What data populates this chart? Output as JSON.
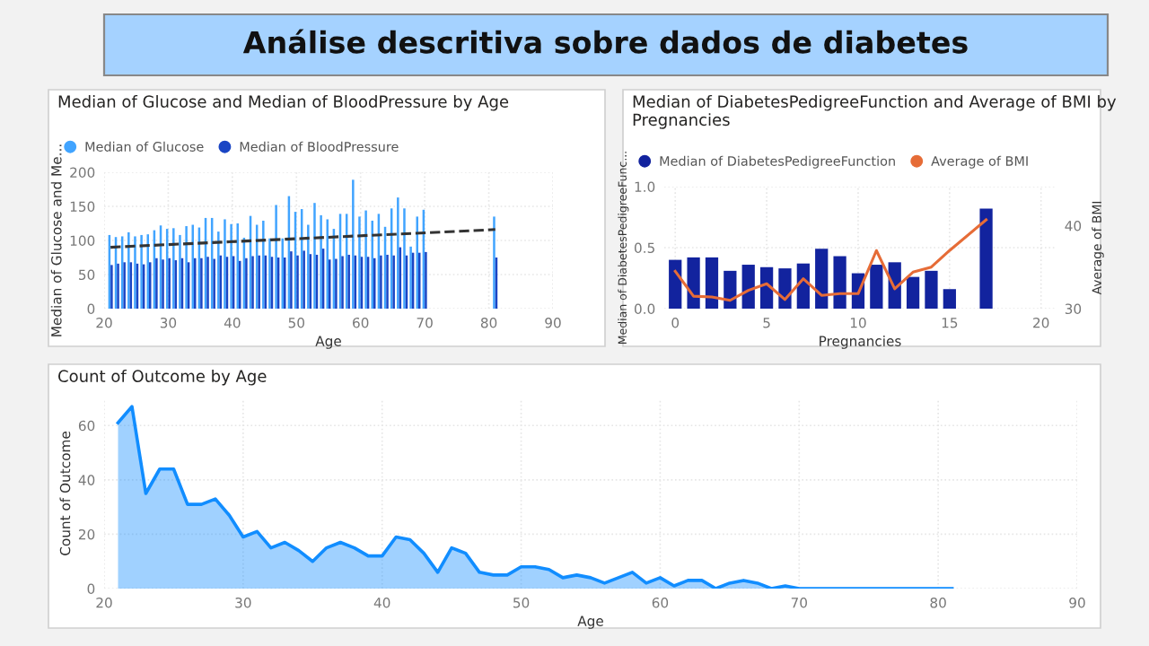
{
  "chart_data": [
    {
      "type": "other",
      "title": "Análise descritiva sobre dados de diabetes",
      "color": "#a5d2ff"
    },
    {
      "type": "bar",
      "title": "Median of Glucose and Median of BloodPressure by Age",
      "xlabel": "Age",
      "ylabel": "Median of Glucose and Me...",
      "x": [
        21,
        22,
        23,
        24,
        25,
        26,
        27,
        28,
        29,
        30,
        31,
        32,
        33,
        34,
        35,
        36,
        37,
        38,
        39,
        40,
        41,
        42,
        43,
        44,
        45,
        46,
        47,
        48,
        49,
        50,
        51,
        52,
        53,
        54,
        55,
        56,
        57,
        58,
        59,
        60,
        61,
        62,
        63,
        64,
        65,
        66,
        67,
        68,
        69,
        70,
        81
      ],
      "series": [
        {
          "name": "Median of Glucose",
          "color": "#41a4ff",
          "values": [
            108,
            105,
            106,
            112,
            106,
            108,
            109,
            115,
            122,
            117,
            118,
            108,
            121,
            123,
            119,
            133,
            133,
            113,
            131,
            124,
            125,
            104,
            136,
            123,
            129,
            103,
            152,
            103,
            165,
            142,
            146,
            123,
            155,
            137,
            131,
            117,
            139,
            139,
            189,
            135,
            144,
            129,
            139,
            120,
            147,
            163,
            147,
            91,
            135,
            145,
            135
          ]
        },
        {
          "name": "Median of BloodPressure",
          "color": "#1a45c4",
          "values": [
            64,
            66,
            68,
            68,
            66,
            65,
            68,
            74,
            72,
            74,
            71,
            74,
            68,
            74,
            74,
            76,
            73,
            78,
            76,
            77,
            70,
            74,
            77,
            78,
            78,
            76,
            75,
            75,
            84,
            78,
            85,
            80,
            79,
            88,
            72,
            73,
            77,
            79,
            78,
            76,
            76,
            74,
            78,
            79,
            78,
            90,
            78,
            82,
            82,
            83,
            75
          ]
        },
        {
          "type": "line",
          "color": "#333333",
          "line_style": "dashed",
          "x": [
            21,
            81
          ],
          "values": [
            90,
            116
          ]
        }
      ],
      "xlim": [
        20,
        90
      ],
      "xticks": [
        20,
        30,
        40,
        50,
        60,
        70,
        80,
        90
      ],
      "ylim": [
        0,
        200
      ],
      "yticks": [
        0,
        50,
        100,
        150,
        200
      ],
      "grid": true,
      "legend": "top left"
    },
    {
      "type": "bar",
      "title": "Median of DiabetesPedigreeFunction and Average of BMI by Pregnancies",
      "xlabel": "Pregnancies",
      "ylabel": "Median of DiabetesPedigreeFunc...",
      "y2label": "Average of BMI",
      "x": [
        0,
        1,
        2,
        3,
        4,
        5,
        6,
        7,
        8,
        9,
        10,
        11,
        12,
        13,
        14,
        15,
        17
      ],
      "series": [
        {
          "name": "Median of DiabetesPedigreeFunction",
          "color": "#12239e",
          "values": [
            0.4,
            0.42,
            0.42,
            0.31,
            0.36,
            0.34,
            0.33,
            0.37,
            0.49,
            0.43,
            0.29,
            0.36,
            0.38,
            0.26,
            0.31,
            0.16,
            0.82
          ]
        },
        {
          "name": "Average of BMI",
          "type": "line",
          "axis": "y2",
          "color": "#e66c37",
          "values": [
            34.5,
            31.5,
            31.4,
            31.0,
            32.2,
            33.0,
            31.1,
            33.6,
            31.6,
            31.8,
            31.8,
            37.0,
            32.4,
            34.4,
            35.0,
            37.0,
            40.7
          ]
        }
      ],
      "xlim": [
        -0.6,
        20.8
      ],
      "xticks": [
        0,
        5,
        10,
        15,
        20
      ],
      "ylim": [
        0,
        1
      ],
      "yticks": [
        {
          "value": 0,
          "label": "0.0"
        },
        {
          "value": 0.5,
          "label": "0.5"
        },
        {
          "value": 1,
          "label": "1.0"
        }
      ],
      "y2lim": [
        30,
        44.7
      ],
      "y2ticks": [
        30,
        40
      ],
      "grid": true,
      "legend": "top left"
    },
    {
      "type": "area",
      "title": "Count of Outcome by Age",
      "xlabel": "Age",
      "ylabel": "Count of Outcome",
      "x": [
        21,
        22,
        23,
        24,
        25,
        26,
        27,
        28,
        29,
        30,
        31,
        32,
        33,
        34,
        35,
        36,
        37,
        38,
        39,
        40,
        41,
        42,
        43,
        44,
        45,
        46,
        47,
        48,
        49,
        50,
        51,
        52,
        53,
        54,
        55,
        56,
        57,
        58,
        59,
        60,
        61,
        62,
        63,
        64,
        65,
        66,
        67,
        68,
        69,
        70,
        81
      ],
      "series": [
        {
          "color": "#118dff",
          "values": [
            61,
            67,
            35,
            44,
            44,
            31,
            31,
            33,
            27,
            19,
            21,
            15,
            17,
            14,
            10,
            15,
            17,
            15,
            12,
            12,
            19,
            18,
            13,
            6,
            15,
            13,
            6,
            5,
            5,
            8,
            8,
            7,
            4,
            5,
            4,
            2,
            4,
            6,
            2,
            4,
            1,
            3,
            3,
            0,
            2,
            3,
            2,
            0,
            1,
            0,
            0
          ]
        }
      ],
      "xlim": [
        20,
        90
      ],
      "xticks": [
        20,
        30,
        40,
        50,
        60,
        70,
        80,
        90
      ],
      "ylim": [
        0,
        70
      ],
      "yticks": [
        0,
        20,
        40,
        60
      ],
      "grid": true
    }
  ]
}
